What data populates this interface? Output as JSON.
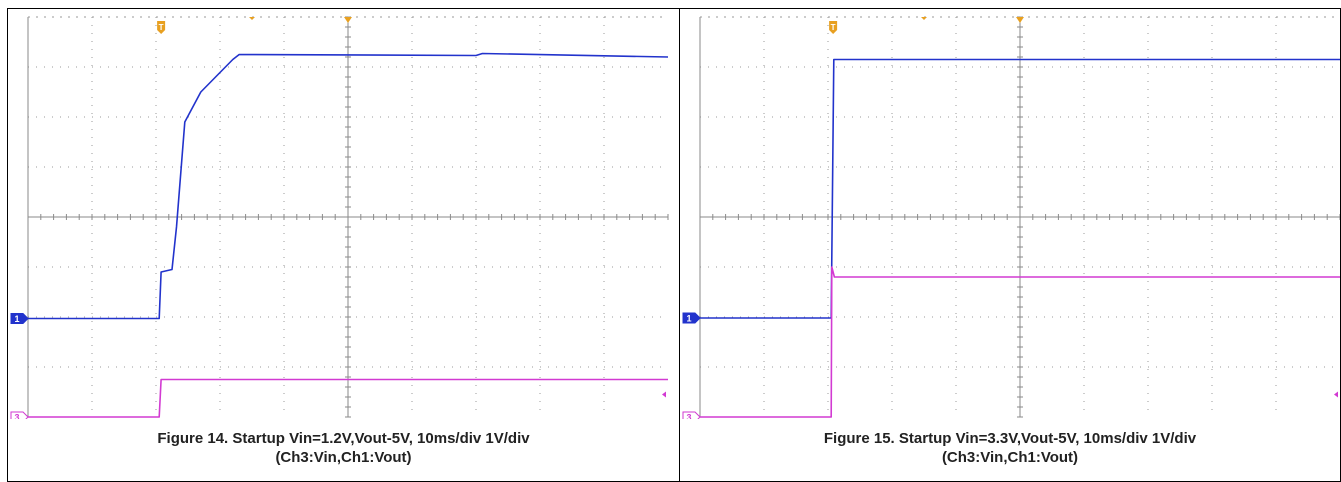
{
  "panels": [
    {
      "caption_line1": "Figure 14. Startup Vin=1.2V,Vout-5V, 10ms/div 1V/div",
      "caption_line2": "(Ch3:Vin,Ch1:Vout)",
      "chart_data": {
        "type": "line",
        "title": "",
        "x_divisions": 10,
        "y_divisions": 8,
        "grid": true,
        "trigger_marker": "T",
        "channel_markers": [
          "1",
          "3"
        ],
        "series": [
          {
            "name": "Ch1",
            "color": "#2233cc",
            "points": [
              [
                0,
                1.97
              ],
              [
                2.05,
                1.97
              ],
              [
                2.08,
                2.9
              ],
              [
                2.25,
                2.95
              ],
              [
                2.32,
                3.8
              ],
              [
                2.45,
                5.9
              ],
              [
                2.7,
                6.5
              ],
              [
                3.2,
                7.15
              ],
              [
                3.3,
                7.25
              ],
              [
                7.0,
                7.23
              ],
              [
                7.1,
                7.27
              ],
              [
                10.0,
                7.2
              ]
            ]
          },
          {
            "name": "Ch3",
            "color": "#d23ad2",
            "points": [
              [
                0,
                0.0
              ],
              [
                2.05,
                0.0
              ],
              [
                2.08,
                0.75
              ],
              [
                10.0,
                0.75
              ]
            ]
          }
        ]
      }
    },
    {
      "caption_line1": "Figure 15. Startup Vin=3.3V,Vout-5V, 10ms/div 1V/div",
      "caption_line2": "(Ch3:Vin,Ch1:Vout)",
      "chart_data": {
        "type": "line",
        "title": "",
        "x_divisions": 10,
        "y_divisions": 8,
        "grid": true,
        "trigger_marker": "T",
        "channel_markers": [
          "1",
          "3"
        ],
        "series": [
          {
            "name": "Ch1",
            "color": "#2233cc",
            "points": [
              [
                0,
                1.98
              ],
              [
                2.05,
                1.98
              ],
              [
                2.09,
                7.15
              ],
              [
                10.0,
                7.15
              ]
            ]
          },
          {
            "name": "Ch3",
            "color": "#d23ad2",
            "points": [
              [
                0,
                0.0
              ],
              [
                2.05,
                0.0
              ],
              [
                2.06,
                3.0
              ],
              [
                2.1,
                2.8
              ],
              [
                10.0,
                2.8
              ]
            ]
          }
        ]
      }
    }
  ]
}
